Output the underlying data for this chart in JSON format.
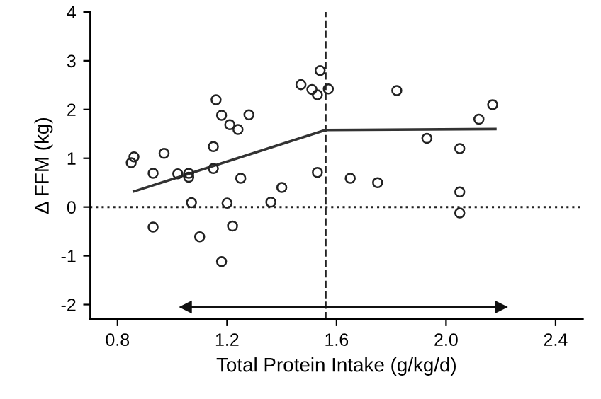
{
  "chart_data": {
    "type": "scatter",
    "xlabel": "Total Protein Intake (g/kg/d)",
    "ylabel": "Δ FFM (kg)",
    "xlim": [
      0.7,
      2.5
    ],
    "ylim": [
      -2.3,
      4
    ],
    "xticks": [
      0.8,
      1.2,
      1.6,
      {
        "value": 2.0,
        "label": "2.0"
      },
      2.4
    ],
    "yticks": [
      -2,
      -1,
      0,
      1,
      2,
      3,
      4
    ],
    "grid": false,
    "legend": false,
    "series": [
      {
        "marker": "circle",
        "color": "#222222",
        "x": [
          0.85,
          0.86,
          0.97,
          0.93,
          1.02,
          1.06,
          1.06,
          1.15,
          1.15,
          1.16,
          1.18,
          1.21,
          1.24,
          1.28,
          1.25,
          1.07,
          1.2,
          1.36,
          1.4,
          0.93,
          1.1,
          1.22,
          1.18,
          1.47,
          1.51,
          1.54,
          1.53,
          1.57,
          1.82,
          2.17,
          2.12,
          1.93,
          2.05,
          1.53,
          1.65,
          1.75,
          2.05,
          2.05
        ],
        "values": [
          0.91,
          1.03,
          1.1,
          0.69,
          0.68,
          0.69,
          0.61,
          0.79,
          1.24,
          2.2,
          1.88,
          1.69,
          1.59,
          1.89,
          0.59,
          0.09,
          0.08,
          0.1,
          0.4,
          -0.41,
          -0.61,
          -0.39,
          -1.12,
          2.51,
          2.41,
          2.8,
          2.3,
          2.42,
          2.39,
          2.1,
          1.8,
          1.41,
          1.2,
          0.71,
          0.59,
          0.5,
          0.31,
          -0.12
        ]
      },
      {
        "type": "line",
        "marker": "none",
        "line_style": "solid",
        "color": "#333333",
        "x": [
          0.86,
          1.56,
          2.18
        ],
        "values": [
          0.32,
          1.58,
          1.6
        ]
      },
      {
        "type": "line",
        "marker": "triangle",
        "line_style": "solid",
        "color": "#111111",
        "x": [
          1.05,
          2.2
        ],
        "values": [
          -2.05,
          -2.05
        ]
      }
    ],
    "ref_lines": [
      {
        "axis": "y",
        "value": 0,
        "line_style": "dotted",
        "color": "#222222"
      },
      {
        "axis": "x",
        "value": 1.56,
        "line_style": "dashed",
        "color": "#222222"
      }
    ]
  }
}
